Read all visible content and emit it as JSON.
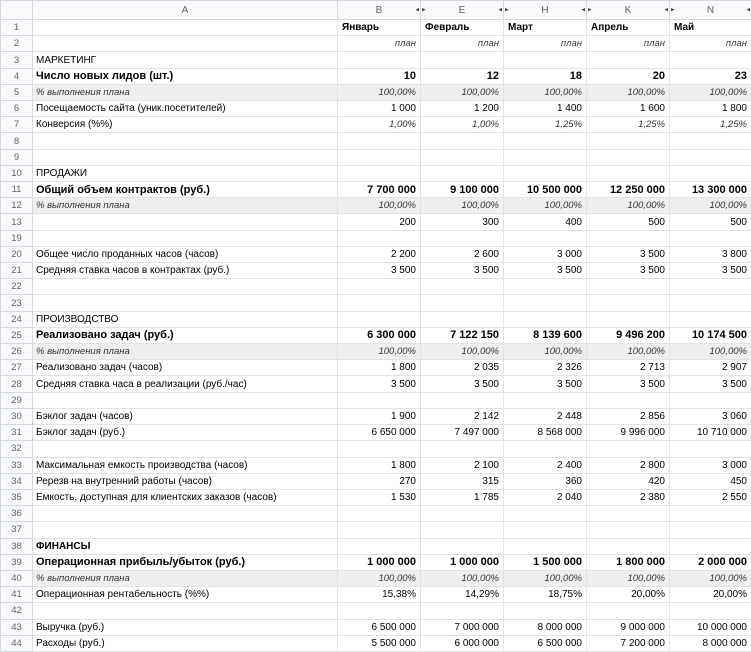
{
  "app": {
    "type": "spreadsheet-grid"
  },
  "icons": {
    "unhide_left": "◂",
    "unhide_right": "▸"
  },
  "columns": [
    {
      "letter": "A"
    },
    {
      "letter": "B",
      "hidden_after": true
    },
    {
      "letter": "E",
      "hidden_before": true,
      "hidden_after": true
    },
    {
      "letter": "H",
      "hidden_before": true,
      "hidden_after": true
    },
    {
      "letter": "K",
      "hidden_before": true,
      "hidden_after": true
    },
    {
      "letter": "N",
      "hidden_before": true,
      "hidden_after": true
    }
  ],
  "rows": [
    {
      "n": "1",
      "cls": "month",
      "label": "",
      "cells": [
        "Январь",
        "Февраль",
        "Март",
        "Апрель",
        "Май"
      ]
    },
    {
      "n": "2",
      "cls": "plan",
      "label": "",
      "cells": [
        "план",
        "план",
        "план",
        "план",
        "план"
      ]
    },
    {
      "n": "3",
      "cls": "section",
      "label": "МАРКЕТИНГ"
    },
    {
      "n": "4",
      "cls": "bold",
      "label": "Число новых лидов (шт.)",
      "cells": [
        "10",
        "12",
        "18",
        "20",
        "23"
      ]
    },
    {
      "n": "5",
      "cls": "gray",
      "label": "% выполнения плана",
      "cells": [
        "100,00%",
        "100,00%",
        "100,00%",
        "100,00%",
        "100,00%"
      ]
    },
    {
      "n": "6",
      "cls": "",
      "label": "Посещаемость сайта (уник.посетителей)",
      "cells": [
        "1 000",
        "1 200",
        "1 400",
        "1 600",
        "1 800"
      ]
    },
    {
      "n": "7",
      "cls": "pct",
      "label": "Конверсия (%%)",
      "cells": [
        "1,00%",
        "1,00%",
        "1,25%",
        "1,25%",
        "1,25%"
      ]
    },
    {
      "n": "8",
      "cls": ""
    },
    {
      "n": "9",
      "cls": ""
    },
    {
      "n": "10",
      "cls": "section",
      "label": "ПРОДАЖИ"
    },
    {
      "n": "11",
      "cls": "bold",
      "label": "Общий объем контрактов (руб.)",
      "cells": [
        "7 700 000",
        "9 100 000",
        "10 500 000",
        "12 250 000",
        "13 300 000"
      ]
    },
    {
      "n": "12",
      "cls": "gray",
      "label": "% выполнения плана",
      "cells": [
        "100,00%",
        "100,00%",
        "100,00%",
        "100,00%",
        "100,00%"
      ]
    },
    {
      "n": "13",
      "cls": "",
      "label": "",
      "cells": [
        "200",
        "300",
        "400",
        "500",
        "500"
      ]
    },
    {
      "n": "19",
      "cls": ""
    },
    {
      "n": "20",
      "cls": "",
      "label": "Общее число проданных часов (часов)",
      "cells": [
        "2 200",
        "2 600",
        "3 000",
        "3 500",
        "3 800"
      ]
    },
    {
      "n": "21",
      "cls": "",
      "label": "Средняя ставка часов в контрактах (руб.)",
      "cells": [
        "3 500",
        "3 500",
        "3 500",
        "3 500",
        "3 500"
      ]
    },
    {
      "n": "22",
      "cls": ""
    },
    {
      "n": "23",
      "cls": ""
    },
    {
      "n": "24",
      "cls": "section",
      "label": "ПРОИЗВОДСТВО"
    },
    {
      "n": "25",
      "cls": "bold",
      "label": "Реализовано задач (руб.)",
      "cells": [
        "6 300 000",
        "7 122 150",
        "8 139 600",
        "9 496 200",
        "10 174 500"
      ]
    },
    {
      "n": "26",
      "cls": "gray",
      "label": "% выполнения плана",
      "cells": [
        "100,00%",
        "100,00%",
        "100,00%",
        "100,00%",
        "100,00%"
      ]
    },
    {
      "n": "27",
      "cls": "",
      "label": "Реализовано задач (часов)",
      "cells": [
        "1 800",
        "2 035",
        "2 326",
        "2 713",
        "2 907"
      ]
    },
    {
      "n": "28",
      "cls": "",
      "label": "Средняя ставка часа в реализации (руб./час)",
      "cells": [
        "3 500",
        "3 500",
        "3 500",
        "3 500",
        "3 500"
      ]
    },
    {
      "n": "29",
      "cls": ""
    },
    {
      "n": "30",
      "cls": "",
      "label": "Бэклог задач (часов)",
      "cells": [
        "1 900",
        "2 142",
        "2 448",
        "2 856",
        "3 060"
      ]
    },
    {
      "n": "31",
      "cls": "",
      "label": "Бэклог задач (руб.)",
      "cells": [
        "6 650 000",
        "7 497 000",
        "8 568 000",
        "9 996 000",
        "10 710 000"
      ]
    },
    {
      "n": "32",
      "cls": ""
    },
    {
      "n": "33",
      "cls": "",
      "label": "Максимальная емкость производства (часов)",
      "cells": [
        "1 800",
        "2 100",
        "2 400",
        "2 800",
        "3 000"
      ]
    },
    {
      "n": "34",
      "cls": "",
      "label": "Ререзв на внутренний работы (часов)",
      "cells": [
        "270",
        "315",
        "360",
        "420",
        "450"
      ]
    },
    {
      "n": "35",
      "cls": "",
      "label": "Емкость, доступная для клиентских заказов (часов)",
      "cells": [
        "1 530",
        "1 785",
        "2 040",
        "2 380",
        "2 550"
      ]
    },
    {
      "n": "36",
      "cls": ""
    },
    {
      "n": "37",
      "cls": ""
    },
    {
      "n": "38",
      "cls": "section strong",
      "label": "ФИНАНСЫ"
    },
    {
      "n": "39",
      "cls": "bold",
      "label": "Операционная прибыль/убыток (руб.)",
      "cells": [
        "1 000 000",
        "1 000 000",
        "1 500 000",
        "1 800 000",
        "2 000 000"
      ]
    },
    {
      "n": "40",
      "cls": "gray",
      "label": "% выполнения плана",
      "cells": [
        "100,00%",
        "100,00%",
        "100,00%",
        "100,00%",
        "100,00%"
      ]
    },
    {
      "n": "41",
      "cls": "",
      "label": "Операционная рентабельность (%%)",
      "cells": [
        "15,38%",
        "14,29%",
        "18,75%",
        "20,00%",
        "20,00%"
      ]
    },
    {
      "n": "42",
      "cls": ""
    },
    {
      "n": "43",
      "cls": "",
      "label": "Выручка (руб.)",
      "cells": [
        "6 500 000",
        "7 000 000",
        "8 000 000",
        "9 000 000",
        "10 000 000"
      ]
    },
    {
      "n": "44",
      "cls": "",
      "label": "Расходы (руб.)",
      "cells": [
        "5 500 000",
        "6 000 000",
        "6 500 000",
        "7 200 000",
        "8 000 000"
      ]
    }
  ]
}
